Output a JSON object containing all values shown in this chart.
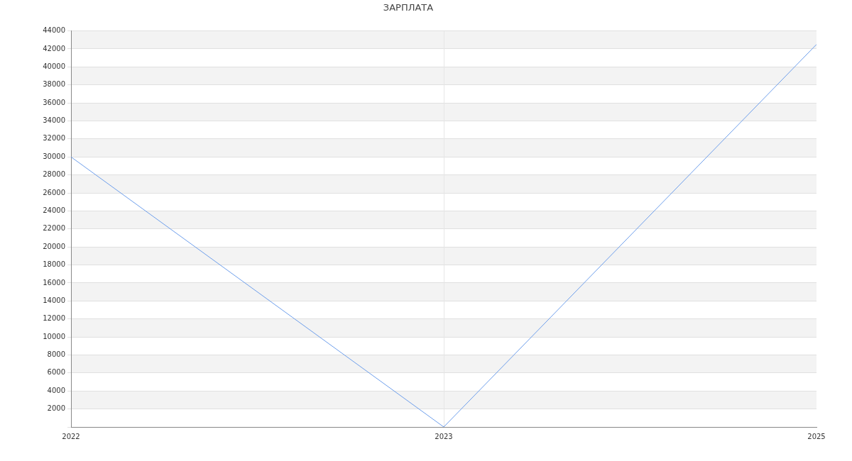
{
  "chart_data": {
    "type": "line",
    "title": "ЗАРПЛАТА",
    "categories": [
      "2022",
      "2023",
      "2025"
    ],
    "series": [
      {
        "color": "#6d9eeb",
        "values": [
          30000,
          0,
          42500
        ]
      }
    ],
    "ylim": [
      0,
      44000
    ],
    "yticks": [
      {
        "value": 0,
        "label": null
      },
      2000,
      4000,
      6000,
      8000,
      10000,
      12000,
      14000,
      16000,
      18000,
      20000,
      22000,
      24000,
      26000,
      28000,
      30000,
      32000,
      34000,
      36000,
      38000,
      40000,
      42000,
      44000
    ],
    "ref_lines": [
      {
        "axis": "x",
        "value": "2023",
        "color": "#e6e6e6"
      }
    ],
    "grid": "y",
    "legend": false,
    "marker": "none",
    "line_style": "solid"
  }
}
